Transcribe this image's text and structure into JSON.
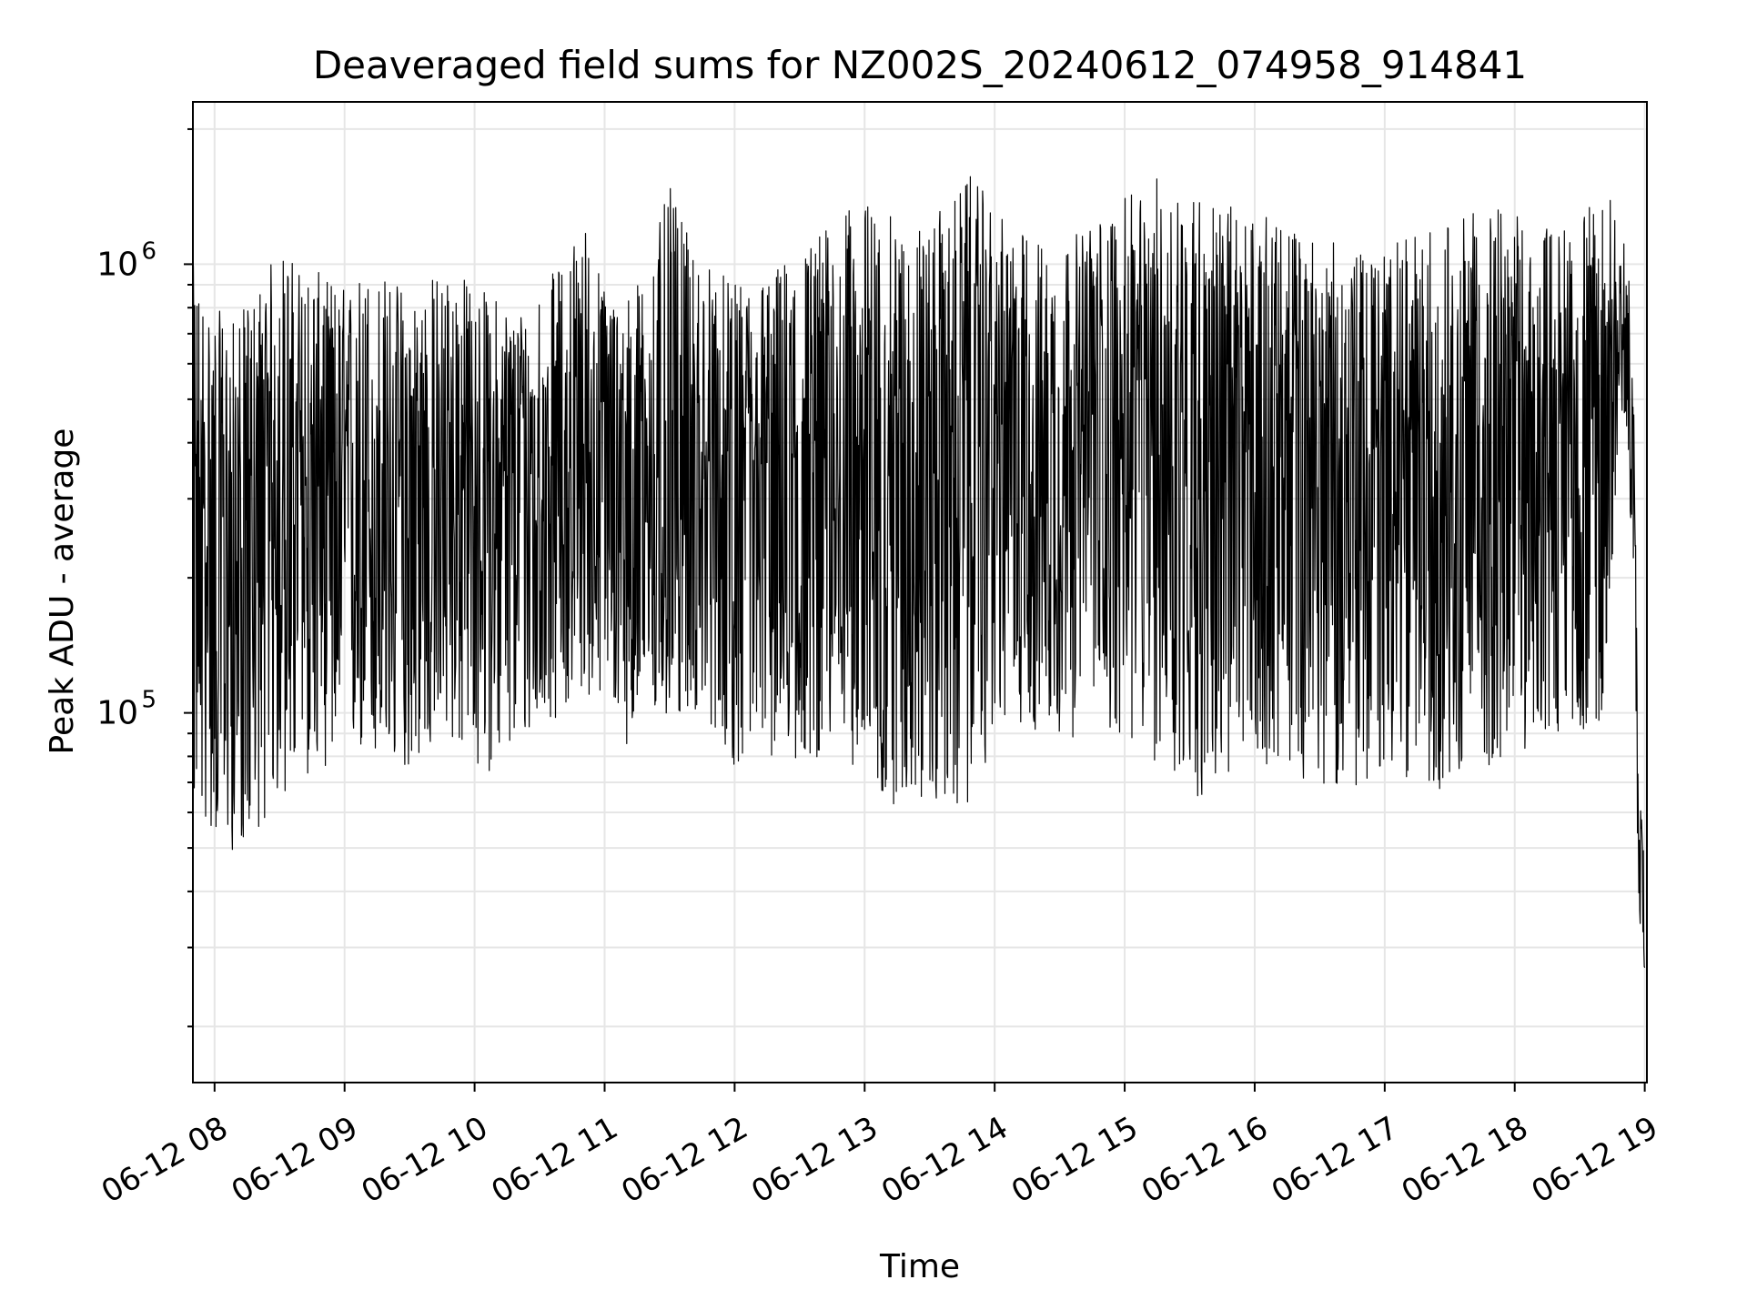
{
  "chart_data": {
    "type": "line",
    "title": "Deaveraged field sums for NZ002S_20240612_074958_914841",
    "xlabel": "Time",
    "ylabel": "Peak ADU - average",
    "y_scale": "log",
    "ylim": [
      15000,
      2300000
    ],
    "xlim": [
      "2024-06-12T07:50:00",
      "2024-06-12T19:01:00"
    ],
    "x_tick_labels": [
      "06-12 08",
      "06-12 09",
      "06-12 10",
      "06-12 11",
      "06-12 12",
      "06-12 13",
      "06-12 14",
      "06-12 15",
      "06-12 16",
      "06-12 17",
      "06-12 18",
      "06-12 19"
    ],
    "y_tick_labels": [
      {
        "value": 100000,
        "base": "10",
        "exponent": "5"
      },
      {
        "value": 1000000,
        "base": "10",
        "exponent": "6"
      }
    ],
    "grid": true,
    "line_color": "#000000",
    "grid_color": "#e6e6e6",
    "series": [
      {
        "x": [
          "2024-06-12T07:50",
          "2024-06-12T08:00",
          "2024-06-12T08:10",
          "2024-06-12T08:20",
          "2024-06-12T08:30",
          "2024-06-12T08:40",
          "2024-06-12T08:50",
          "2024-06-12T09:00",
          "2024-06-12T09:10",
          "2024-06-12T09:20",
          "2024-06-12T09:30",
          "2024-06-12T09:40",
          "2024-06-12T09:50",
          "2024-06-12T10:00",
          "2024-06-12T10:10",
          "2024-06-12T10:20",
          "2024-06-12T10:30",
          "2024-06-12T10:40",
          "2024-06-12T10:50",
          "2024-06-12T11:00",
          "2024-06-12T11:10",
          "2024-06-12T11:20",
          "2024-06-12T11:30",
          "2024-06-12T11:40",
          "2024-06-12T11:50",
          "2024-06-12T12:00",
          "2024-06-12T12:10",
          "2024-06-12T12:20",
          "2024-06-12T12:30",
          "2024-06-12T12:40",
          "2024-06-12T12:50",
          "2024-06-12T13:00",
          "2024-06-12T13:10",
          "2024-06-12T13:20",
          "2024-06-12T13:30",
          "2024-06-12T13:40",
          "2024-06-12T13:50",
          "2024-06-12T14:00",
          "2024-06-12T14:10",
          "2024-06-12T14:20",
          "2024-06-12T14:30",
          "2024-06-12T14:40",
          "2024-06-12T14:50",
          "2024-06-12T15:00",
          "2024-06-12T15:10",
          "2024-06-12T15:20",
          "2024-06-12T15:30",
          "2024-06-12T15:40",
          "2024-06-12T15:50",
          "2024-06-12T16:00",
          "2024-06-12T16:10",
          "2024-06-12T16:20",
          "2024-06-12T16:30",
          "2024-06-12T16:40",
          "2024-06-12T16:50",
          "2024-06-12T17:00",
          "2024-06-12T17:10",
          "2024-06-12T17:20",
          "2024-06-12T17:30",
          "2024-06-12T17:40",
          "2024-06-12T17:50",
          "2024-06-12T18:00",
          "2024-06-12T18:10",
          "2024-06-12T18:20",
          "2024-06-12T18:30",
          "2024-06-12T18:40",
          "2024-06-12T18:50",
          "2024-06-12T18:55",
          "2024-06-12T18:57",
          "2024-06-12T18:59",
          "2024-06-12T19:00"
        ],
        "low": [
          60000,
          52000,
          48000,
          55000,
          62000,
          70000,
          75000,
          80000,
          78000,
          72000,
          75000,
          80000,
          85000,
          72000,
          75000,
          80000,
          90000,
          100000,
          110000,
          105000,
          85000,
          90000,
          95000,
          100000,
          92000,
          75000,
          80000,
          78000,
          75000,
          80000,
          82000,
          70000,
          60000,
          65000,
          60000,
          58000,
          62000,
          90000,
          95000,
          88000,
          85000,
          90000,
          92000,
          85000,
          80000,
          70000,
          65000,
          62000,
          70000,
          75000,
          78000,
          72000,
          70000,
          68000,
          66000,
          70000,
          72000,
          65000,
          70000,
          72000,
          75000,
          80000,
          85000,
          88000,
          90000,
          95000,
          500000,
          200000,
          40000,
          25000,
          22000
        ],
        "median": [
          250000,
          220000,
          200000,
          260000,
          300000,
          320000,
          300000,
          280000,
          260000,
          240000,
          270000,
          300000,
          310000,
          310000,
          320000,
          330000,
          340000,
          350000,
          360000,
          350000,
          340000,
          320000,
          300000,
          310000,
          300000,
          290000,
          300000,
          310000,
          320000,
          330000,
          340000,
          350000,
          360000,
          370000,
          380000,
          390000,
          400000,
          410000,
          420000,
          400000,
          390000,
          400000,
          410000,
          420000,
          430000,
          440000,
          420000,
          410000,
          400000,
          390000,
          380000,
          370000,
          360000,
          350000,
          340000,
          330000,
          340000,
          350000,
          360000,
          370000,
          380000,
          390000,
          400000,
          410000,
          420000,
          430000,
          800000,
          400000,
          60000,
          40000,
          35000
        ],
        "high": [
          1000000,
          800000,
          750000,
          900000,
          1100000,
          1000000,
          950000,
          900000,
          1000000,
          950000,
          900000,
          950000,
          1000000,
          900000,
          850000,
          800000,
          900000,
          1000000,
          1300000,
          900000,
          850000,
          1000000,
          1500000,
          1100000,
          1000000,
          900000,
          950000,
          1000000,
          1100000,
          1200000,
          1300000,
          1400000,
          1300000,
          1200000,
          1250000,
          1400000,
          1600000,
          1300000,
          1200000,
          1150000,
          1100000,
          1200000,
          1300000,
          1400000,
          1500000,
          1650000,
          1500000,
          1400000,
          1350000,
          1300000,
          1250000,
          1200000,
          1150000,
          1100000,
          1050000,
          1100000,
          1150000,
          1200000,
          1250000,
          1300000,
          1350000,
          1300000,
          1250000,
          1200000,
          1300000,
          1400000,
          1500000,
          600000,
          70000,
          55000,
          50000
        ]
      }
    ]
  }
}
